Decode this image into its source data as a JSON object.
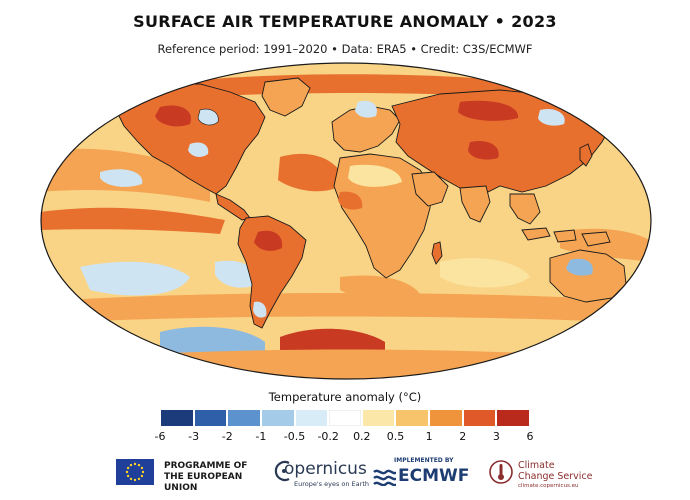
{
  "header": {
    "title": "SURFACE AIR TEMPERATURE ANOMALY • 2023",
    "subtitle": "Reference period: 1991–2020 • Data: ERA5 • Credit: C3S/ECMWF"
  },
  "legend": {
    "title": "Temperature anomaly (°C)",
    "ticks": [
      "-6",
      "-3",
      "-2",
      "-1",
      "-0.5",
      "-0.2",
      "0.2",
      "0.5",
      "1",
      "2",
      "3",
      "6"
    ],
    "colors": [
      "#1b3b7a",
      "#2f5fa8",
      "#5c93cf",
      "#a4cbe8",
      "#d8ecf7",
      "#ffffff",
      "#fbe7a8",
      "#f7c46b",
      "#f0943c",
      "#df5a28",
      "#b92a1c"
    ]
  },
  "palette": {
    "ocean_base": "#f9d486",
    "warm_light": "#fbe3a0",
    "warm_mid": "#f4a452",
    "warm_strong": "#e8702f",
    "hot": "#c83a22",
    "cool_light": "#cfe4f3",
    "cool_mid": "#8fbadf",
    "cool_strong": "#5b8fc8",
    "coast": "#1a1a1a"
  },
  "footer": {
    "eu_line1": "PROGRAMME OF",
    "eu_line2": "THE EUROPEAN UNION",
    "copernicus_word": "opernicus",
    "copernicus_tag": "Europe's eyes on Earth",
    "ecmwf_implemented": "IMPLEMENTED BY",
    "ecmwf_word": "ECMWF",
    "c3s_line1": "Climate",
    "c3s_line2": "Change Service",
    "c3s_url": "climate.copernicus.eu"
  }
}
